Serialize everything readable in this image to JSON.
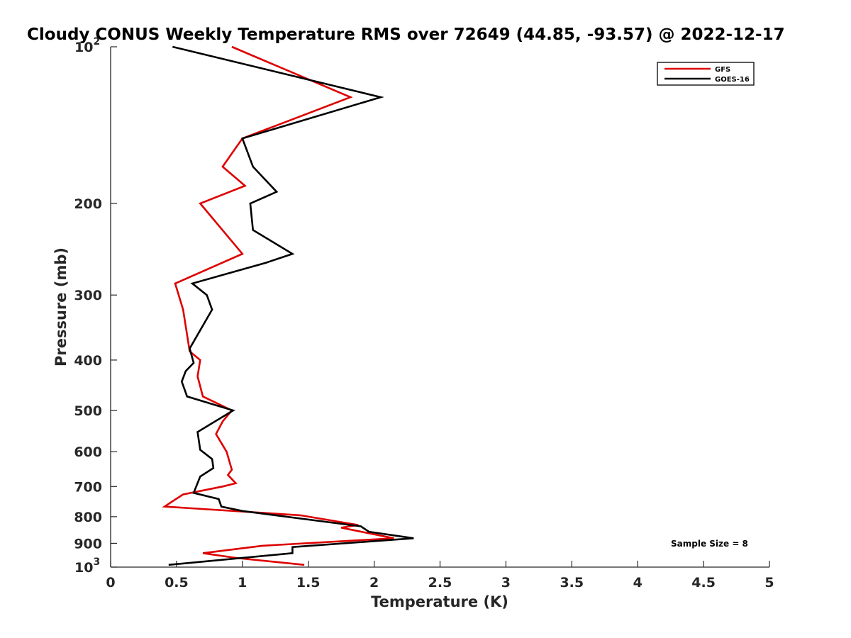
{
  "chart_data": {
    "type": "line",
    "title": "Cloudy CONUS Weekly Temperature RMS over 72649 (44.85, -93.57) @ 2022-12-17",
    "xlabel": "Temperature (K)",
    "ylabel": "Pressure (mb)",
    "xlim": [
      0,
      5
    ],
    "ylim": [
      100,
      1000
    ],
    "y_scale": "log",
    "y_reversed": true,
    "x_ticks": [
      "0",
      "0.5",
      "1",
      "1.5",
      "2",
      "2.5",
      "3",
      "3.5",
      "4",
      "4.5",
      "5"
    ],
    "y_ticks": [
      {
        "value": 100,
        "base": "10",
        "exp": "2"
      },
      {
        "value": 200,
        "label": "200"
      },
      {
        "value": 300,
        "label": "300"
      },
      {
        "value": 400,
        "label": "400"
      },
      {
        "value": 500,
        "label": "500"
      },
      {
        "value": 600,
        "label": "600"
      },
      {
        "value": 700,
        "label": "700"
      },
      {
        "value": 800,
        "label": "800"
      },
      {
        "value": 900,
        "label": "900"
      },
      {
        "value": 1000,
        "base": "10",
        "exp": "3"
      }
    ],
    "legend_position": "top-right",
    "grid": false,
    "annotation": "Sample Size = 8",
    "series": [
      {
        "name": "GFS",
        "color": "#dd0000",
        "points": [
          [
            0.92,
            100
          ],
          [
            1.82,
            125
          ],
          [
            1.0,
            150
          ],
          [
            0.85,
            170
          ],
          [
            1.02,
            185
          ],
          [
            0.68,
            200
          ],
          [
            1.0,
            250
          ],
          [
            0.49,
            285
          ],
          [
            0.55,
            320
          ],
          [
            0.6,
            385
          ],
          [
            0.68,
            400
          ],
          [
            0.66,
            430
          ],
          [
            0.7,
            470
          ],
          [
            0.92,
            500
          ],
          [
            0.85,
            525
          ],
          [
            0.8,
            555
          ],
          [
            0.88,
            600
          ],
          [
            0.92,
            650
          ],
          [
            0.89,
            665
          ],
          [
            0.95,
            690
          ],
          [
            0.85,
            700
          ],
          [
            0.55,
            725
          ],
          [
            0.46,
            750
          ],
          [
            0.41,
            765
          ],
          [
            1.44,
            795
          ],
          [
            1.88,
            830
          ],
          [
            1.75,
            840
          ],
          [
            2.15,
            880
          ],
          [
            1.15,
            910
          ],
          [
            0.7,
            940
          ],
          [
            0.95,
            960
          ],
          [
            1.47,
            990
          ]
        ]
      },
      {
        "name": "GOES-16",
        "color": "#000000",
        "points": [
          [
            0.47,
            100
          ],
          [
            2.05,
            125
          ],
          [
            1.0,
            150
          ],
          [
            1.08,
            170
          ],
          [
            1.26,
            190
          ],
          [
            1.06,
            200
          ],
          [
            1.08,
            225
          ],
          [
            1.38,
            250
          ],
          [
            1.18,
            260
          ],
          [
            0.62,
            285
          ],
          [
            0.73,
            300
          ],
          [
            0.77,
            320
          ],
          [
            0.6,
            380
          ],
          [
            0.63,
            405
          ],
          [
            0.57,
            420
          ],
          [
            0.54,
            440
          ],
          [
            0.58,
            470
          ],
          [
            0.93,
            500
          ],
          [
            0.66,
            550
          ],
          [
            0.68,
            595
          ],
          [
            0.77,
            620
          ],
          [
            0.78,
            645
          ],
          [
            0.68,
            670
          ],
          [
            0.63,
            720
          ],
          [
            0.82,
            740
          ],
          [
            0.84,
            765
          ],
          [
            1.0,
            780
          ],
          [
            1.9,
            835
          ],
          [
            1.96,
            855
          ],
          [
            2.3,
            880
          ],
          [
            1.38,
            915
          ],
          [
            1.38,
            940
          ],
          [
            0.44,
            990
          ]
        ]
      }
    ]
  }
}
